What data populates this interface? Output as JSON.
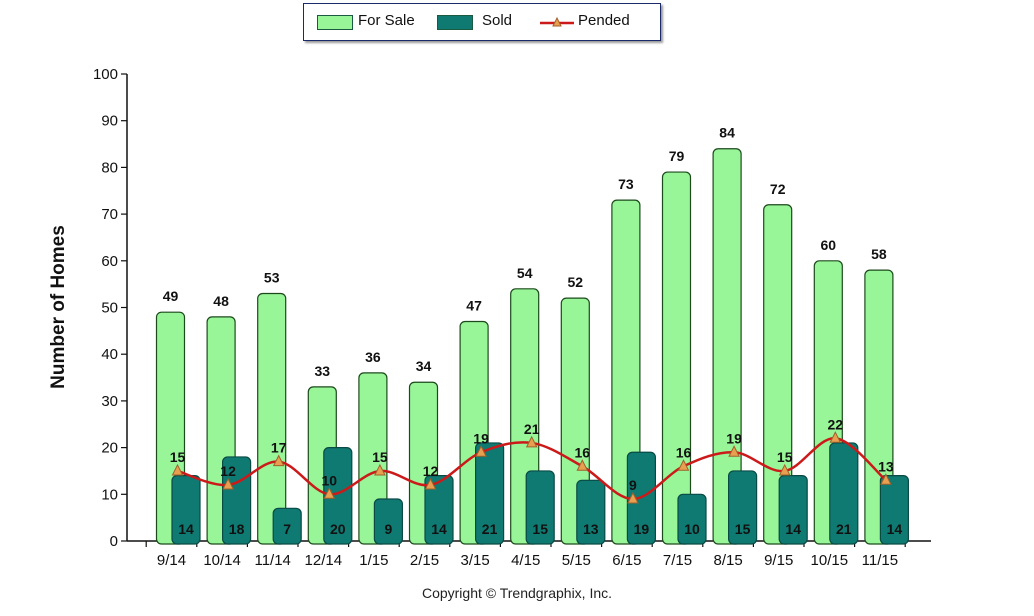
{
  "chart_data": {
    "type": "bar",
    "categories": [
      "9/14",
      "10/14",
      "11/14",
      "12/14",
      "1/15",
      "2/15",
      "3/15",
      "4/15",
      "5/15",
      "6/15",
      "7/15",
      "8/15",
      "9/15",
      "10/15",
      "11/15"
    ],
    "series": [
      {
        "name": "For Sale",
        "type": "bar",
        "color": "#98f598",
        "values": [
          49,
          48,
          53,
          33,
          36,
          34,
          47,
          54,
          52,
          73,
          79,
          84,
          72,
          60,
          58
        ]
      },
      {
        "name": "Sold",
        "type": "bar",
        "color": "#0f7a72",
        "values": [
          14,
          18,
          7,
          20,
          9,
          14,
          21,
          15,
          13,
          19,
          10,
          15,
          14,
          21,
          14
        ]
      },
      {
        "name": "Pended",
        "type": "line",
        "color": "#cc1a1a",
        "marker_color": "#e8a050",
        "values": [
          15,
          12,
          17,
          10,
          15,
          12,
          19,
          21,
          16,
          9,
          16,
          19,
          15,
          22,
          13
        ]
      }
    ],
    "ylabel": "Number of Homes",
    "ylim": [
      0,
      100
    ],
    "yticks": [
      "0",
      "10",
      "20",
      "30",
      "40",
      "50",
      "60",
      "70",
      "80",
      "90",
      "100"
    ],
    "legend_position": "top-center",
    "grid": false
  },
  "legend": {
    "for_sale": "For Sale",
    "sold": "Sold",
    "pended": "Pended"
  },
  "copyright": "Copyright © Trendgraphix, Inc."
}
